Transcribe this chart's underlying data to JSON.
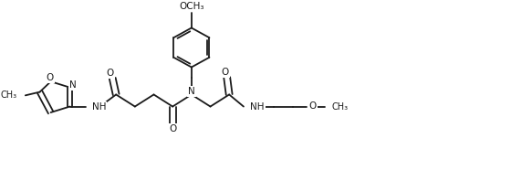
{
  "bg_color": "#ffffff",
  "line_color": "#1a1a1a",
  "line_width": 1.3,
  "font_size": 7.5,
  "fig_width": 5.6,
  "fig_height": 1.98,
  "dpi": 100,
  "xlim": [
    0,
    11
  ],
  "ylim": [
    0,
    4.2
  ]
}
